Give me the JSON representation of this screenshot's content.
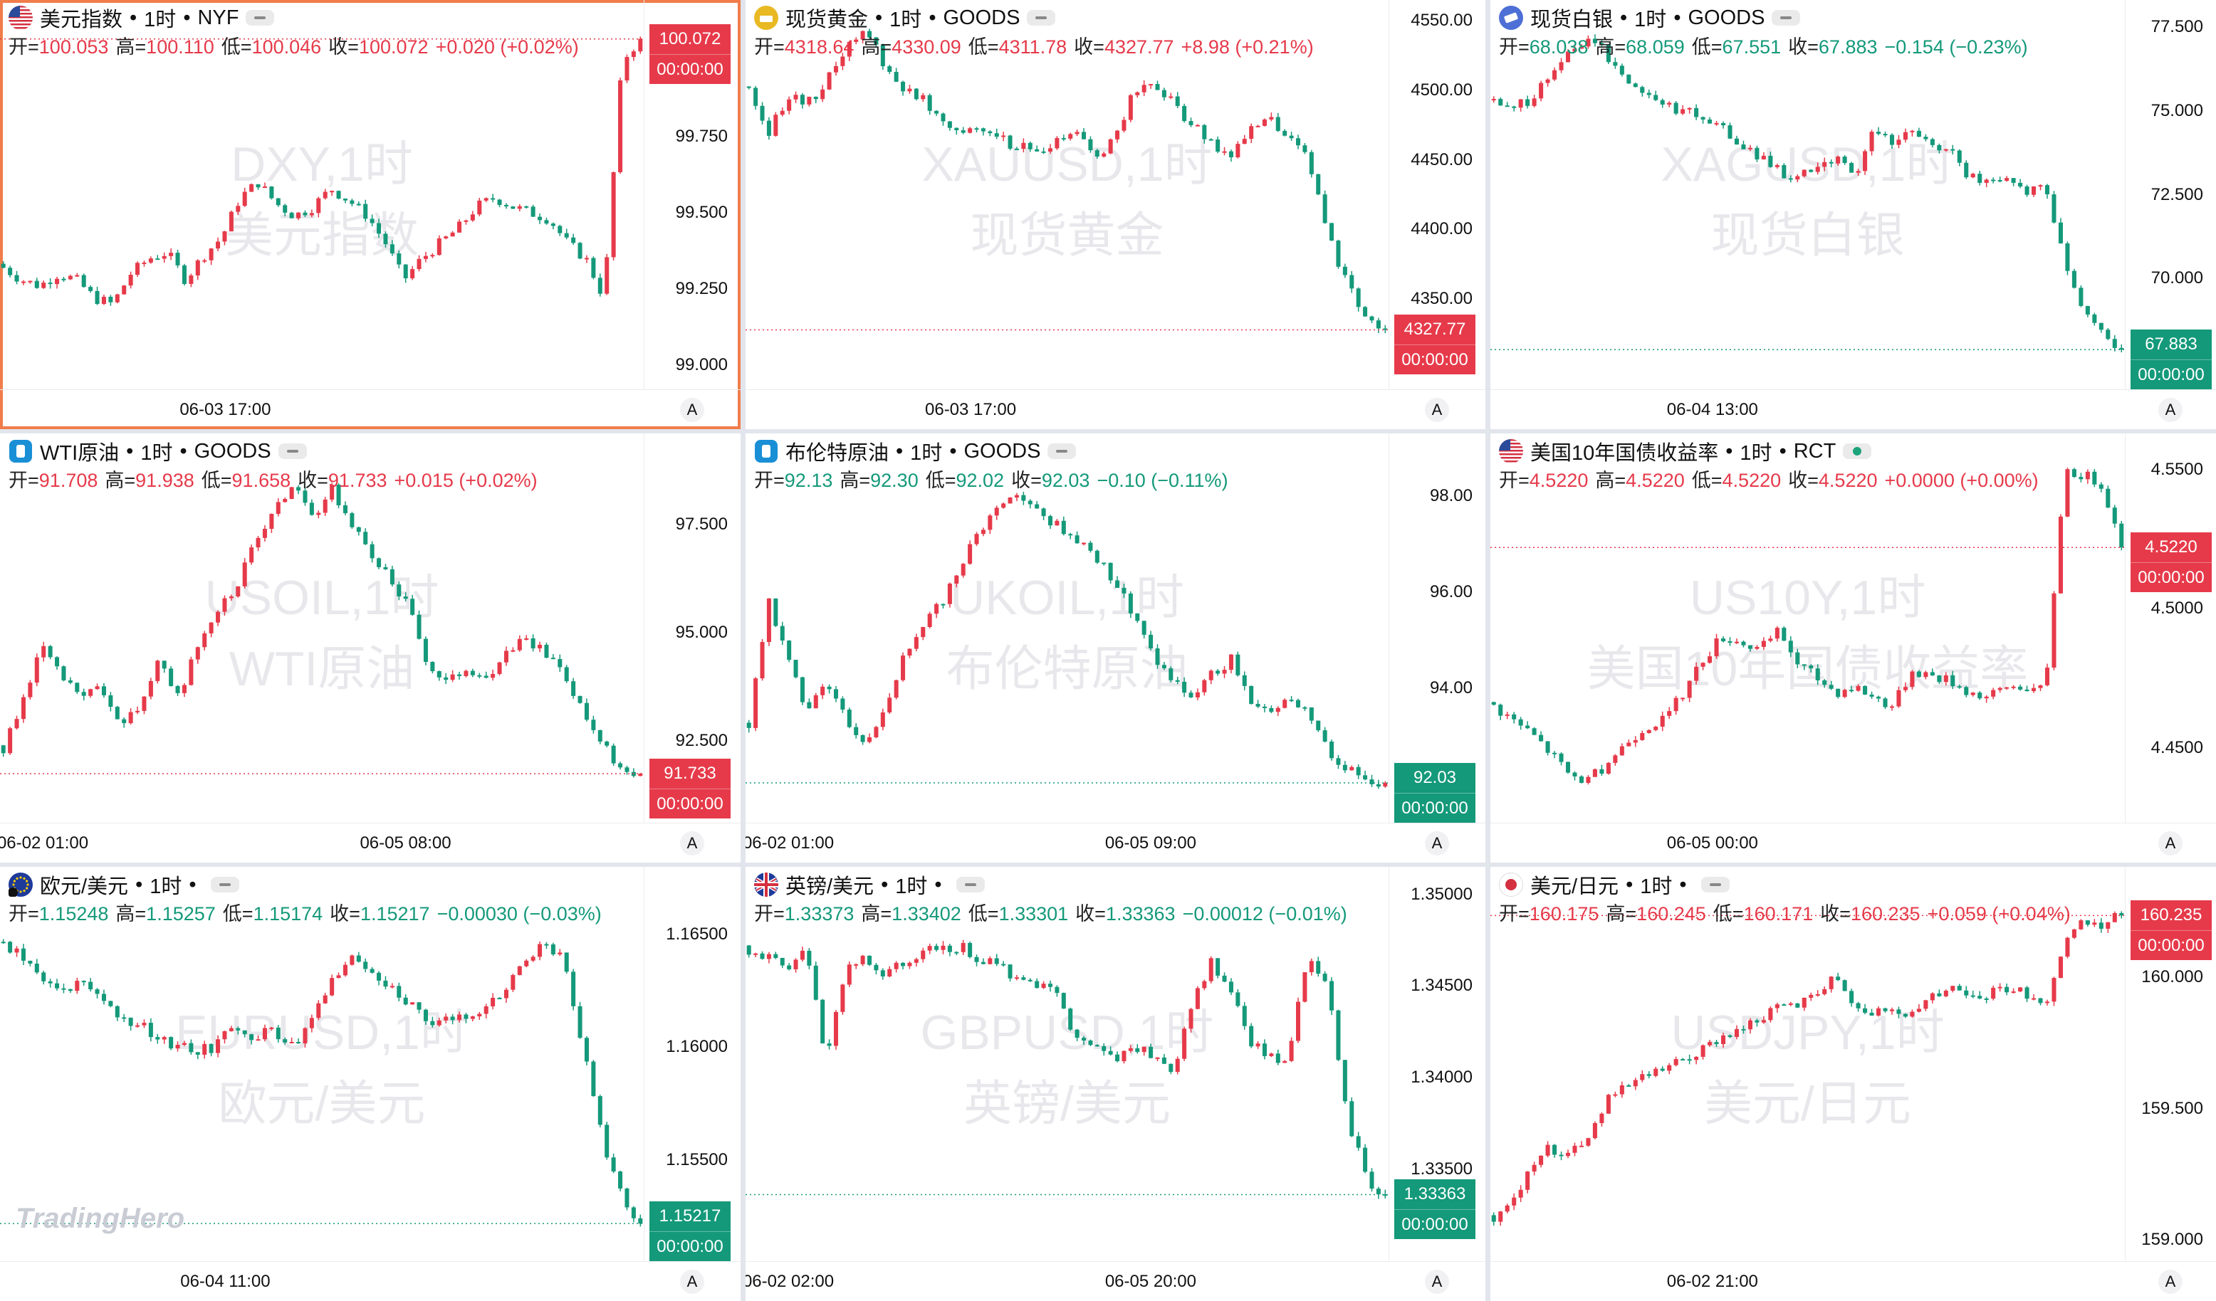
{
  "brand": {
    "logo_text": "TradingHero"
  },
  "colors": {
    "up": "#e63a4a",
    "down": "#14997a"
  },
  "panels": [
    {
      "id": "dxy",
      "name_text": "美元指数",
      "interval": "1时",
      "exchange": "NYF",
      "icon": "us-flag-icon",
      "eye_state": "hidden",
      "open": "100.053",
      "high": "100.110",
      "low": "100.046",
      "close": "100.072",
      "change": "+0.020 (+0.02%)",
      "direction": "up",
      "watermark_line1": "DXY,1时",
      "watermark_line2": "美元指数",
      "y_ticks": [
        "99.750",
        "99.500",
        "99.250",
        "99.000"
      ],
      "x_ticks": [
        "06-03 17:00"
      ],
      "price_label": "100.072",
      "countdown": "00:00:00",
      "auto_button": "A",
      "chart_data": {
        "type": "candlestick",
        "ylim": [
          98.92,
          100.2
        ],
        "close_path": [
          99.32,
          99.28,
          99.26,
          99.3,
          99.28,
          99.22,
          99.2,
          99.3,
          99.35,
          99.37,
          99.28,
          99.36,
          99.42,
          99.55,
          99.6,
          99.53,
          99.49,
          99.52,
          99.58,
          99.54,
          99.49,
          99.4,
          99.28,
          99.35,
          99.4,
          99.45,
          99.52,
          99.55,
          99.52,
          99.5,
          99.48,
          99.4,
          99.35,
          99.22,
          100.0,
          100.072
        ]
      }
    },
    {
      "id": "xau",
      "name_text": "现货黄金",
      "interval": "1时",
      "exchange": "GOODS",
      "icon": "gold-coin-icon",
      "eye_state": "hidden",
      "open": "4318.64",
      "high": "4330.09",
      "low": "4311.78",
      "close": "4327.77",
      "change": "+8.98 (+0.21%)",
      "direction": "up",
      "watermark_line1": "XAUUSD,1时",
      "watermark_line2": "现货黄金",
      "y_ticks": [
        "4550.00",
        "4500.00",
        "4450.00",
        "4400.00",
        "4350.00"
      ],
      "x_ticks": [
        "06-03 17:00"
      ],
      "price_label": "4327.77",
      "countdown": "00:00:00",
      "auto_button": "A",
      "chart_data": {
        "type": "candlestick",
        "ylim": [
          4285,
          4565
        ],
        "close_path": [
          4500,
          4470,
          4495,
          4490,
          4505,
          4530,
          4545,
          4520,
          4500,
          4495,
          4480,
          4470,
          4475,
          4465,
          4460,
          4455,
          4462,
          4470,
          4450,
          4468,
          4500,
          4505,
          4490,
          4475,
          4460,
          4455,
          4470,
          4480,
          4465,
          4450,
          4400,
          4360,
          4340,
          4327.77
        ]
      }
    },
    {
      "id": "xag",
      "name_text": "现货白银",
      "interval": "1时",
      "exchange": "GOODS",
      "icon": "silver-coin-icon",
      "eye_state": "hidden",
      "open": "68.038",
      "high": "68.059",
      "low": "67.551",
      "close": "67.883",
      "change": "−0.154 (−0.23%)",
      "direction": "down",
      "watermark_line1": "XAGUSD,1时",
      "watermark_line2": "现货白银",
      "y_ticks": [
        "77.500",
        "75.000",
        "72.500",
        "70.000"
      ],
      "x_ticks": [
        "06-04 13:00"
      ],
      "price_label": "67.883",
      "countdown": "00:00:00",
      "auto_button": "A",
      "chart_data": {
        "type": "candlestick",
        "ylim": [
          66.7,
          78.3
        ],
        "close_path": [
          75.2,
          75.0,
          75.4,
          76.0,
          76.8,
          77.2,
          76.6,
          76.0,
          75.5,
          75.2,
          75.0,
          74.8,
          74.5,
          74.0,
          73.6,
          73.2,
          73.0,
          73.3,
          73.5,
          73.1,
          74.5,
          74.0,
          74.3,
          74.1,
          73.8,
          73.0,
          72.8,
          72.9,
          72.6,
          72.8,
          70.5,
          69.0,
          68.3,
          67.883
        ]
      }
    },
    {
      "id": "wti",
      "name_text": "WTI原油",
      "interval": "1时",
      "exchange": "GOODS",
      "icon": "oil-barrel-icon",
      "eye_state": "hidden",
      "open": "91.708",
      "high": "91.938",
      "low": "91.658",
      "close": "91.733",
      "change": "+0.015 (+0.02%)",
      "direction": "up",
      "watermark_line1": "USOIL,1时",
      "watermark_line2": "WTI原油",
      "y_ticks": [
        "97.500",
        "95.000",
        "92.500"
      ],
      "x_ticks": [
        "06-02 01:00",
        "06-05 08:00"
      ],
      "price_label": "91.733",
      "countdown": "00:00:00",
      "auto_button": "A",
      "chart_data": {
        "type": "candlestick",
        "ylim": [
          90.6,
          99.6
        ],
        "close_path": [
          92.3,
          93.5,
          94.6,
          94.0,
          93.4,
          93.8,
          92.8,
          93.3,
          94.3,
          93.5,
          94.6,
          95.5,
          96.0,
          97.0,
          97.8,
          98.4,
          97.6,
          98.3,
          97.6,
          96.8,
          96.3,
          95.6,
          94.3,
          93.8,
          94.2,
          93.9,
          94.6,
          94.9,
          94.5,
          94.1,
          93.2,
          92.4,
          91.9,
          91.733
        ]
      }
    },
    {
      "id": "brent",
      "name_text": "布伦特原油",
      "interval": "1时",
      "exchange": "GOODS",
      "icon": "oil-barrel-icon",
      "eye_state": "hidden",
      "open": "92.13",
      "high": "92.30",
      "low": "92.02",
      "close": "92.03",
      "change": "−0.10 (−0.11%)",
      "direction": "down",
      "watermark_line1": "UKOIL,1时",
      "watermark_line2": "布伦特原油",
      "y_ticks": [
        "98.00",
        "96.00",
        "94.00"
      ],
      "x_ticks": [
        "06-02 01:00",
        "06-05 09:00"
      ],
      "price_label": "92.03",
      "countdown": "00:00:00",
      "auto_button": "A",
      "chart_data": {
        "type": "candlestick",
        "ylim": [
          91.2,
          99.3
        ],
        "close_path": [
          93.2,
          95.8,
          94.6,
          93.6,
          94.2,
          93.4,
          92.8,
          93.6,
          94.6,
          95.2,
          95.8,
          96.6,
          97.3,
          97.8,
          98.1,
          97.6,
          97.4,
          97.1,
          96.7,
          96.2,
          95.5,
          94.6,
          94.1,
          93.8,
          94.3,
          94.6,
          93.8,
          93.5,
          93.9,
          93.4,
          92.7,
          92.3,
          92.1,
          92.03
        ]
      }
    },
    {
      "id": "us10y",
      "name_text": "美国10年国债收益率",
      "interval": "1时",
      "exchange": "RCT",
      "icon": "us-flag-icon",
      "eye_state": "live",
      "open": "4.5220",
      "high": "4.5220",
      "low": "4.5220",
      "close": "4.5220",
      "change": "+0.0000 (+0.00%)",
      "direction": "up",
      "watermark_line1": "US10Y,1时",
      "watermark_line2": "美国10年国债收益率",
      "y_ticks": [
        "4.5500",
        "4.5000",
        "4.4500"
      ],
      "x_ticks": [
        "06-05 00:00"
      ],
      "price_label": "4.5220",
      "countdown": "00:00:00",
      "auto_button": "A",
      "chart_data": {
        "type": "candlestick",
        "ylim": [
          4.423,
          4.563
        ],
        "close_path": [
          4.465,
          4.46,
          4.455,
          4.448,
          4.44,
          4.438,
          4.445,
          4.452,
          4.458,
          4.46,
          4.47,
          4.482,
          4.49,
          4.488,
          4.485,
          4.492,
          4.48,
          4.475,
          4.47,
          4.472,
          4.468,
          4.465,
          4.478,
          4.476,
          4.474,
          4.47,
          4.468,
          4.472,
          4.472,
          4.47,
          4.55,
          4.548,
          4.545,
          4.522
        ]
      }
    },
    {
      "id": "eurusd",
      "name_text": "欧元/美元",
      "interval": "1时",
      "exchange": "",
      "icon": "eu-flag-icon",
      "eye_state": "hidden",
      "open": "1.15248",
      "high": "1.15257",
      "low": "1.15174",
      "close": "1.15217",
      "change": "−0.00030 (−0.03%)",
      "direction": "down",
      "watermark_line1": "EURUSD,1时",
      "watermark_line2": "欧元/美元",
      "y_ticks": [
        "1.16500",
        "1.16000",
        "1.15500"
      ],
      "x_ticks": [
        "06-04 11:00"
      ],
      "price_label": "1.15217",
      "countdown": "00:00:00",
      "auto_button": "A",
      "chart_data": {
        "type": "candlestick",
        "ylim": [
          1.1505,
          1.168
        ],
        "close_path": [
          1.1645,
          1.164,
          1.163,
          1.1625,
          1.1628,
          1.162,
          1.1615,
          1.161,
          1.1605,
          1.16,
          1.1598,
          1.16,
          1.161,
          1.1605,
          1.1608,
          1.16,
          1.1612,
          1.163,
          1.164,
          1.1635,
          1.1628,
          1.162,
          1.161,
          1.1612,
          1.1615,
          1.1618,
          1.1625,
          1.164,
          1.1645,
          1.164,
          1.16,
          1.156,
          1.1535,
          1.15217
        ]
      }
    },
    {
      "id": "gbpusd",
      "name_text": "英镑/美元",
      "interval": "1时",
      "exchange": "",
      "icon": "uk-flag-icon",
      "eye_state": "hidden",
      "open": "1.33373",
      "high": "1.33402",
      "low": "1.33301",
      "close": "1.33363",
      "change": "−0.00012 (−0.01%)",
      "direction": "down",
      "watermark_line1": "GBPUSD,1时",
      "watermark_line2": "英镑/美元",
      "y_ticks": [
        "1.35000",
        "1.34500",
        "1.34000",
        "1.33500"
      ],
      "x_ticks": [
        "06-02 02:00",
        "06-05 20:00"
      ],
      "price_label": "1.33363",
      "countdown": "00:00:00",
      "auto_button": "A",
      "chart_data": {
        "type": "candlestick",
        "ylim": [
          1.33,
          1.3515
        ],
        "close_path": [
          1.347,
          1.3465,
          1.346,
          1.347,
          1.341,
          1.346,
          1.3465,
          1.3455,
          1.3462,
          1.3468,
          1.347,
          1.3472,
          1.3465,
          1.346,
          1.3455,
          1.345,
          1.3445,
          1.342,
          1.3415,
          1.341,
          1.3418,
          1.3412,
          1.3405,
          1.344,
          1.3465,
          1.3445,
          1.342,
          1.341,
          1.3412,
          1.347,
          1.345,
          1.338,
          1.3345,
          1.33363
        ]
      }
    },
    {
      "id": "usdjpy",
      "name_text": "美元/日元",
      "interval": "1时",
      "exchange": "",
      "icon": "jp-flag-icon",
      "eye_state": "hidden",
      "open": "160.175",
      "high": "160.245",
      "low": "160.171",
      "close": "160.235",
      "change": "+0.059 (+0.04%)",
      "direction": "up",
      "watermark_line1": "USDJPY,1时",
      "watermark_line2": "美元/日元",
      "y_ticks": [
        "160.000",
        "159.500",
        "159.000"
      ],
      "x_ticks": [
        "06-02 21:00"
      ],
      "price_label": "160.235",
      "countdown": "00:00:00",
      "auto_button": "A",
      "chart_data": {
        "type": "candlestick",
        "ylim": [
          158.92,
          160.42
        ],
        "close_path": [
          159.08,
          159.15,
          159.3,
          159.35,
          159.33,
          159.4,
          159.55,
          159.58,
          159.62,
          159.65,
          159.68,
          159.72,
          159.78,
          159.8,
          159.85,
          159.88,
          159.9,
          159.95,
          160.02,
          159.9,
          159.86,
          159.88,
          159.85,
          159.92,
          159.97,
          159.95,
          159.93,
          159.96,
          159.94,
          159.9,
          160.12,
          160.22,
          160.2,
          160.235
        ]
      }
    }
  ]
}
